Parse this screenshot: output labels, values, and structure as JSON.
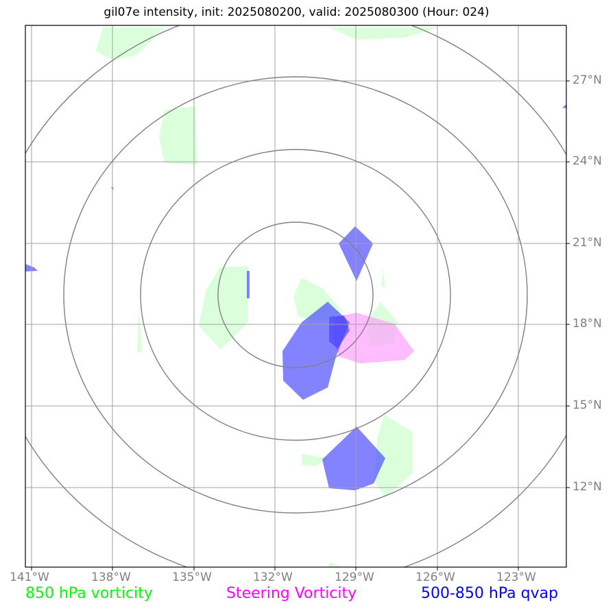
{
  "title": "gil07e intensity, init: 2025080200, valid: 2025080300 (Hour: 024)",
  "lon_labels": [
    "141°W",
    "138°W",
    "135°W",
    "132°W",
    "129°W",
    "126°W",
    "123°W"
  ],
  "lat_labels": [
    "27°N",
    "24°N",
    "21°N",
    "18°N",
    "15°N",
    "12°N"
  ],
  "legend": {
    "vorticity_850": {
      "label": "850 hPa vorticity",
      "color": "#00ff00"
    },
    "steering": {
      "label": "Steering Vorticity",
      "color": "#ff00ff"
    },
    "qvap": {
      "label": "500-850 hPa qvap",
      "color": "#0000ff"
    }
  },
  "colors": {
    "grid": "#a0a0a0",
    "range_rings": "#808080",
    "vorticity_fill": "#ccffcc",
    "steering_fill": "#ff99ff",
    "qvap_fill": "#4040ff"
  }
}
